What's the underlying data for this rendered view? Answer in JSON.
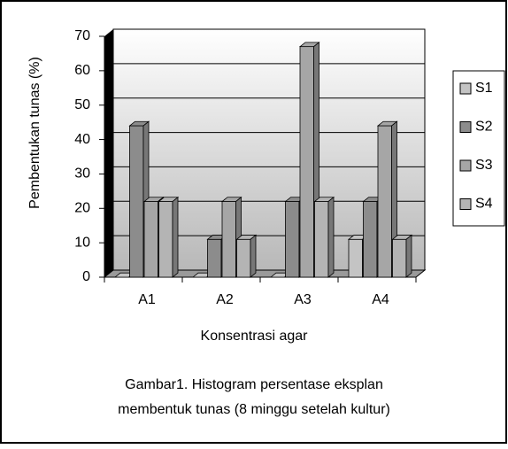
{
  "chart_data": {
    "type": "bar3d",
    "y_label": "Pembentukan tunas (%)",
    "x_label": "Konsentrasi agar",
    "caption": [
      "Gambar1. Histogram persentase eksplan",
      "membentuk tunas (8 minggu setelah kultur)"
    ],
    "categories": [
      "A1",
      "A2",
      "A3",
      "A4"
    ],
    "series": [
      {
        "name": "S1",
        "color": "#c4c4c4",
        "values": [
          0,
          0,
          0,
          11
        ]
      },
      {
        "name": "S2",
        "color": "#8c8c8c",
        "values": [
          44,
          11,
          22,
          22
        ]
      },
      {
        "name": "S3",
        "color": "#a6a6a6",
        "values": [
          22,
          22,
          67,
          44
        ]
      },
      {
        "name": "S4",
        "color": "#b4b4b4",
        "values": [
          22,
          11,
          22,
          11
        ]
      }
    ],
    "ylim": [
      0,
      70
    ],
    "yticks": [
      0,
      10,
      20,
      30,
      40,
      50,
      60,
      70
    ],
    "grid": true,
    "legend": "right"
  }
}
